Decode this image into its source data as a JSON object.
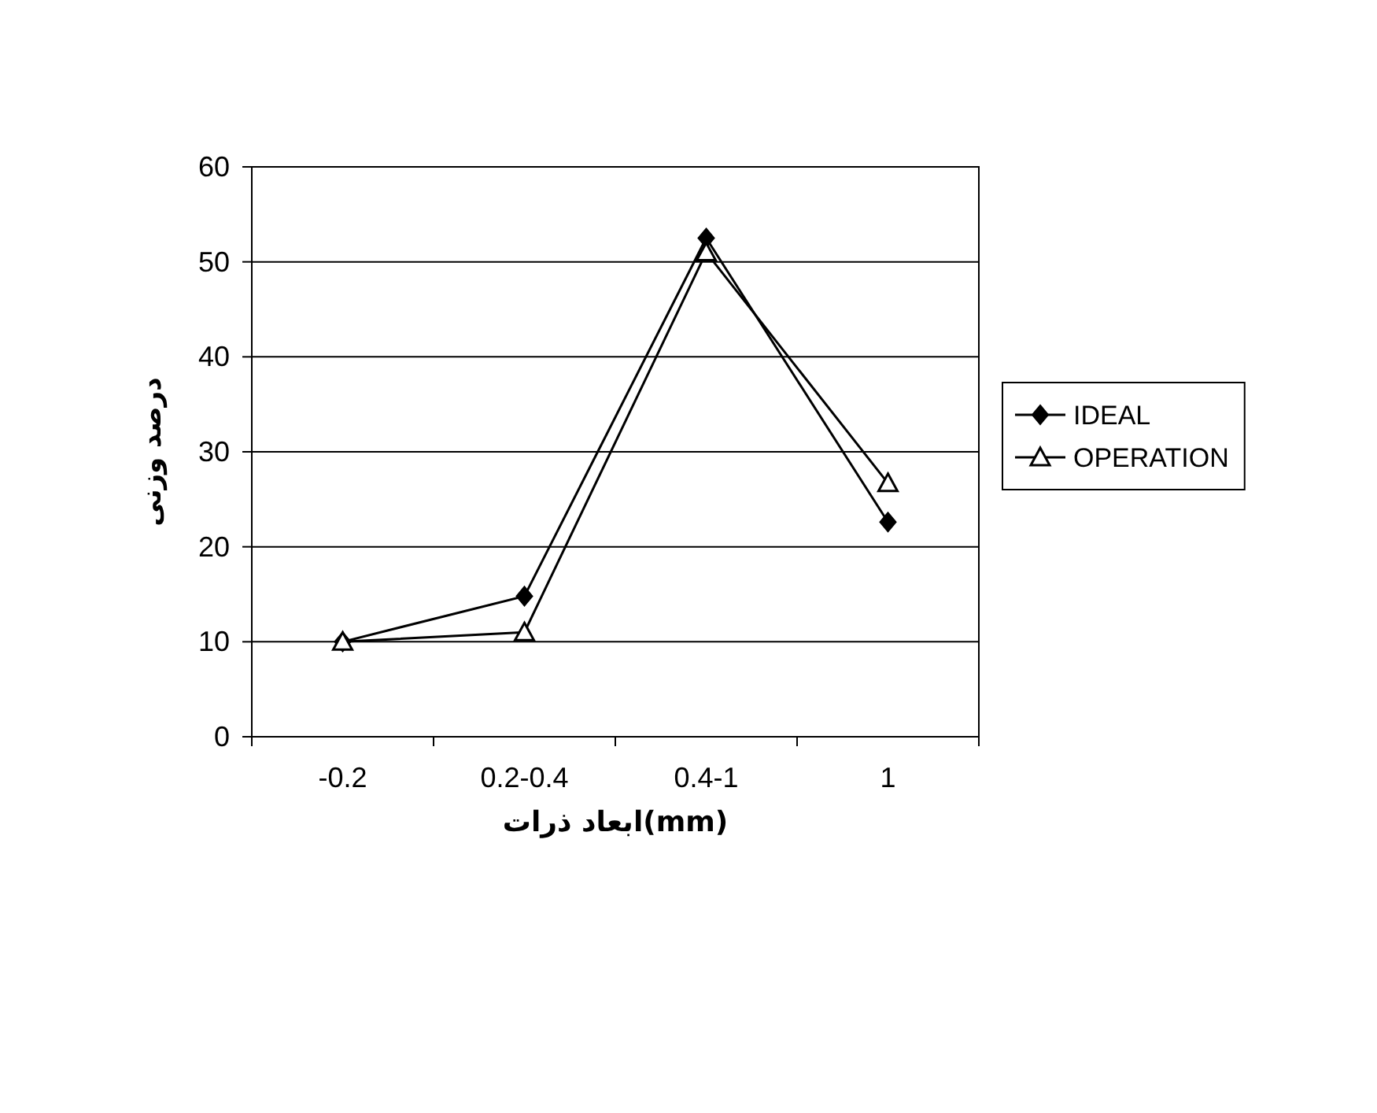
{
  "chart_data": {
    "type": "line",
    "xlabel": "ابعاد ذرات(mm)",
    "ylabel": "درصد وزنی",
    "categories": [
      "-0.2",
      "0.2-0.4",
      "0.4-1",
      "1"
    ],
    "series": [
      {
        "name": "IDEAL",
        "color": "#000000",
        "marker": "diamond",
        "values": [
          10,
          14.8,
          52.5,
          22.6
        ]
      },
      {
        "name": "OPERATION",
        "color": "#000000",
        "marker": "triangle",
        "values": [
          10,
          11,
          51,
          26.7
        ]
      }
    ],
    "ylim": [
      0,
      60
    ],
    "yticks": [
      0,
      10,
      20,
      30,
      40,
      50,
      60
    ],
    "grid": "y",
    "legend": "right",
    "line_style": "solid"
  }
}
